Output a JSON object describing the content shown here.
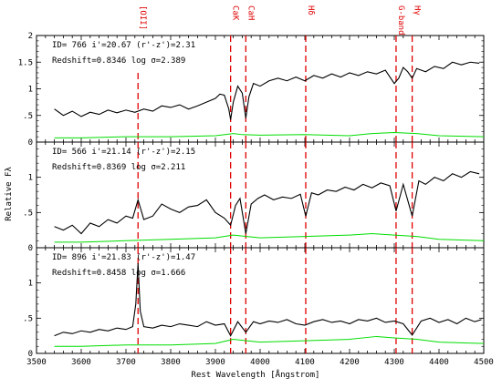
{
  "chart_data": {
    "type": "line",
    "xlabel": "Rest Wavelength [Ångstrom]",
    "ylabel": "Relative Fλ",
    "xlim": [
      3500,
      4500
    ],
    "x_ticks": [
      3500,
      3600,
      3700,
      3800,
      3900,
      4000,
      4100,
      4200,
      4300,
      4400,
      4500
    ],
    "colors": {
      "spectrum": "#000000",
      "error": "#00dd00",
      "line_marker": "#e00000"
    },
    "line_markers": [
      {
        "label": "[OII]",
        "x": 3727,
        "color": "#e00000"
      },
      {
        "label": "CaK",
        "x": 3934,
        "color": "#e00000"
      },
      {
        "label": "CaH",
        "x": 3968,
        "color": "#e00000"
      },
      {
        "label": "Hδ",
        "x": 4102,
        "color": "#e00000"
      },
      {
        "label": "G-band",
        "x": 4304,
        "color": "#e00000"
      },
      {
        "label": "Hγ",
        "x": 4340,
        "color": "#e00000"
      }
    ],
    "panels": [
      {
        "label_line1": "ID= 766   i'=20.67  (r'-z')=2.31",
        "label_line2": "Redshift=0.8346    log σ=2.389",
        "ylim": [
          0,
          2
        ],
        "y_ticks": [
          0,
          0.5,
          1,
          1.5,
          2
        ],
        "y_tick_labels": [
          "0",
          ".5",
          "1",
          "1.5",
          "2"
        ],
        "marked_lines": [
          "[OII]",
          "CaK",
          "CaH",
          "Hδ",
          "G-band",
          "Hγ"
        ],
        "spectrum": {
          "x": [
            3540,
            3560,
            3580,
            3600,
            3620,
            3640,
            3660,
            3680,
            3700,
            3720,
            3740,
            3760,
            3780,
            3800,
            3820,
            3840,
            3860,
            3880,
            3900,
            3910,
            3920,
            3930,
            3934,
            3940,
            3950,
            3960,
            3968,
            3975,
            3985,
            4000,
            4020,
            4040,
            4060,
            4080,
            4100,
            4120,
            4140,
            4160,
            4180,
            4200,
            4220,
            4240,
            4260,
            4280,
            4300,
            4310,
            4320,
            4330,
            4340,
            4350,
            4370,
            4390,
            4410,
            4430,
            4450,
            4470,
            4490
          ],
          "y": [
            0.62,
            0.5,
            0.58,
            0.48,
            0.56,
            0.52,
            0.6,
            0.55,
            0.6,
            0.56,
            0.62,
            0.58,
            0.68,
            0.65,
            0.7,
            0.62,
            0.68,
            0.75,
            0.82,
            0.9,
            0.88,
            0.62,
            0.42,
            0.75,
            1.05,
            0.92,
            0.45,
            0.85,
            1.1,
            1.05,
            1.15,
            1.2,
            1.15,
            1.22,
            1.15,
            1.25,
            1.2,
            1.28,
            1.22,
            1.3,
            1.25,
            1.32,
            1.28,
            1.35,
            1.1,
            1.2,
            1.4,
            1.32,
            1.2,
            1.38,
            1.32,
            1.42,
            1.38,
            1.5,
            1.45,
            1.5,
            1.48
          ]
        },
        "error": {
          "x": [
            3540,
            3600,
            3700,
            3800,
            3900,
            3940,
            3960,
            4000,
            4100,
            4200,
            4250,
            4300,
            4350,
            4400,
            4500
          ],
          "y": [
            0.08,
            0.08,
            0.1,
            0.1,
            0.12,
            0.16,
            0.14,
            0.13,
            0.14,
            0.12,
            0.16,
            0.18,
            0.16,
            0.12,
            0.1
          ]
        }
      },
      {
        "label_line1": "ID= 566   i'=21.14  (r'-z')=2.15",
        "label_line2": "Redshift=0.8369    log σ=2.211",
        "ylim": [
          0,
          1.5
        ],
        "y_ticks": [
          0,
          0.5,
          1
        ],
        "y_tick_labels": [
          "0",
          ".5",
          "1"
        ],
        "marked_lines": [
          "[OII]",
          "CaK",
          "CaH",
          "Hδ",
          "G-band",
          "Hγ"
        ],
        "spectrum": {
          "x": [
            3540,
            3560,
            3580,
            3600,
            3620,
            3640,
            3660,
            3680,
            3700,
            3715,
            3727,
            3740,
            3760,
            3780,
            3800,
            3820,
            3840,
            3860,
            3880,
            3900,
            3920,
            3934,
            3945,
            3955,
            3968,
            3980,
            3995,
            4010,
            4030,
            4050,
            4070,
            4090,
            4102,
            4115,
            4130,
            4150,
            4170,
            4190,
            4210,
            4230,
            4250,
            4270,
            4290,
            4304,
            4320,
            4340,
            4355,
            4370,
            4390,
            4410,
            4430,
            4450,
            4470,
            4490
          ],
          "y": [
            0.3,
            0.25,
            0.32,
            0.2,
            0.35,
            0.3,
            0.4,
            0.35,
            0.45,
            0.42,
            0.68,
            0.4,
            0.45,
            0.62,
            0.55,
            0.5,
            0.58,
            0.6,
            0.68,
            0.5,
            0.42,
            0.32,
            0.6,
            0.7,
            0.2,
            0.62,
            0.7,
            0.75,
            0.68,
            0.72,
            0.7,
            0.76,
            0.45,
            0.78,
            0.75,
            0.82,
            0.8,
            0.86,
            0.82,
            0.9,
            0.85,
            0.92,
            0.88,
            0.52,
            0.9,
            0.45,
            0.95,
            0.9,
            1.0,
            0.95,
            1.05,
            1.0,
            1.08,
            1.05
          ]
        },
        "error": {
          "x": [
            3540,
            3600,
            3700,
            3800,
            3900,
            3940,
            3970,
            4000,
            4100,
            4200,
            4250,
            4300,
            4350,
            4400,
            4500
          ],
          "y": [
            0.08,
            0.08,
            0.1,
            0.12,
            0.14,
            0.18,
            0.16,
            0.14,
            0.16,
            0.18,
            0.2,
            0.18,
            0.16,
            0.12,
            0.1
          ]
        }
      },
      {
        "label_line1": "ID= 896   i'=21.83  (r'-z')=1.47",
        "label_line2": "Redshift=0.8458    log σ=1.666",
        "ylim": [
          0,
          1.5
        ],
        "y_ticks": [
          0,
          0.5,
          1
        ],
        "y_tick_labels": [
          "0",
          ".5",
          "1"
        ],
        "marked_lines": [
          "[OII]",
          "CaK",
          "CaH",
          "Hδ",
          "G-band",
          "Hγ"
        ],
        "spectrum": {
          "x": [
            3540,
            3560,
            3580,
            3600,
            3620,
            3640,
            3660,
            3680,
            3700,
            3715,
            3722,
            3727,
            3732,
            3740,
            3760,
            3780,
            3800,
            3820,
            3840,
            3860,
            3880,
            3900,
            3920,
            3934,
            3950,
            3968,
            3985,
            4000,
            4020,
            4040,
            4060,
            4080,
            4100,
            4120,
            4140,
            4160,
            4180,
            4200,
            4220,
            4240,
            4260,
            4280,
            4300,
            4320,
            4340,
            4360,
            4380,
            4400,
            4420,
            4440,
            4460,
            4480,
            4495
          ],
          "y": [
            0.25,
            0.3,
            0.28,
            0.32,
            0.3,
            0.34,
            0.32,
            0.36,
            0.34,
            0.38,
            0.7,
            1.28,
            0.6,
            0.38,
            0.36,
            0.4,
            0.38,
            0.42,
            0.4,
            0.38,
            0.45,
            0.4,
            0.42,
            0.25,
            0.45,
            0.3,
            0.45,
            0.42,
            0.46,
            0.44,
            0.48,
            0.42,
            0.4,
            0.45,
            0.48,
            0.44,
            0.46,
            0.42,
            0.48,
            0.46,
            0.5,
            0.44,
            0.46,
            0.42,
            0.26,
            0.46,
            0.5,
            0.44,
            0.48,
            0.42,
            0.5,
            0.45,
            0.48
          ]
        },
        "error": {
          "x": [
            3540,
            3600,
            3700,
            3800,
            3900,
            3940,
            3970,
            4000,
            4100,
            4200,
            4260,
            4300,
            4350,
            4400,
            4500
          ],
          "y": [
            0.1,
            0.1,
            0.12,
            0.12,
            0.14,
            0.2,
            0.18,
            0.16,
            0.18,
            0.2,
            0.24,
            0.22,
            0.2,
            0.16,
            0.14
          ]
        }
      }
    ]
  }
}
